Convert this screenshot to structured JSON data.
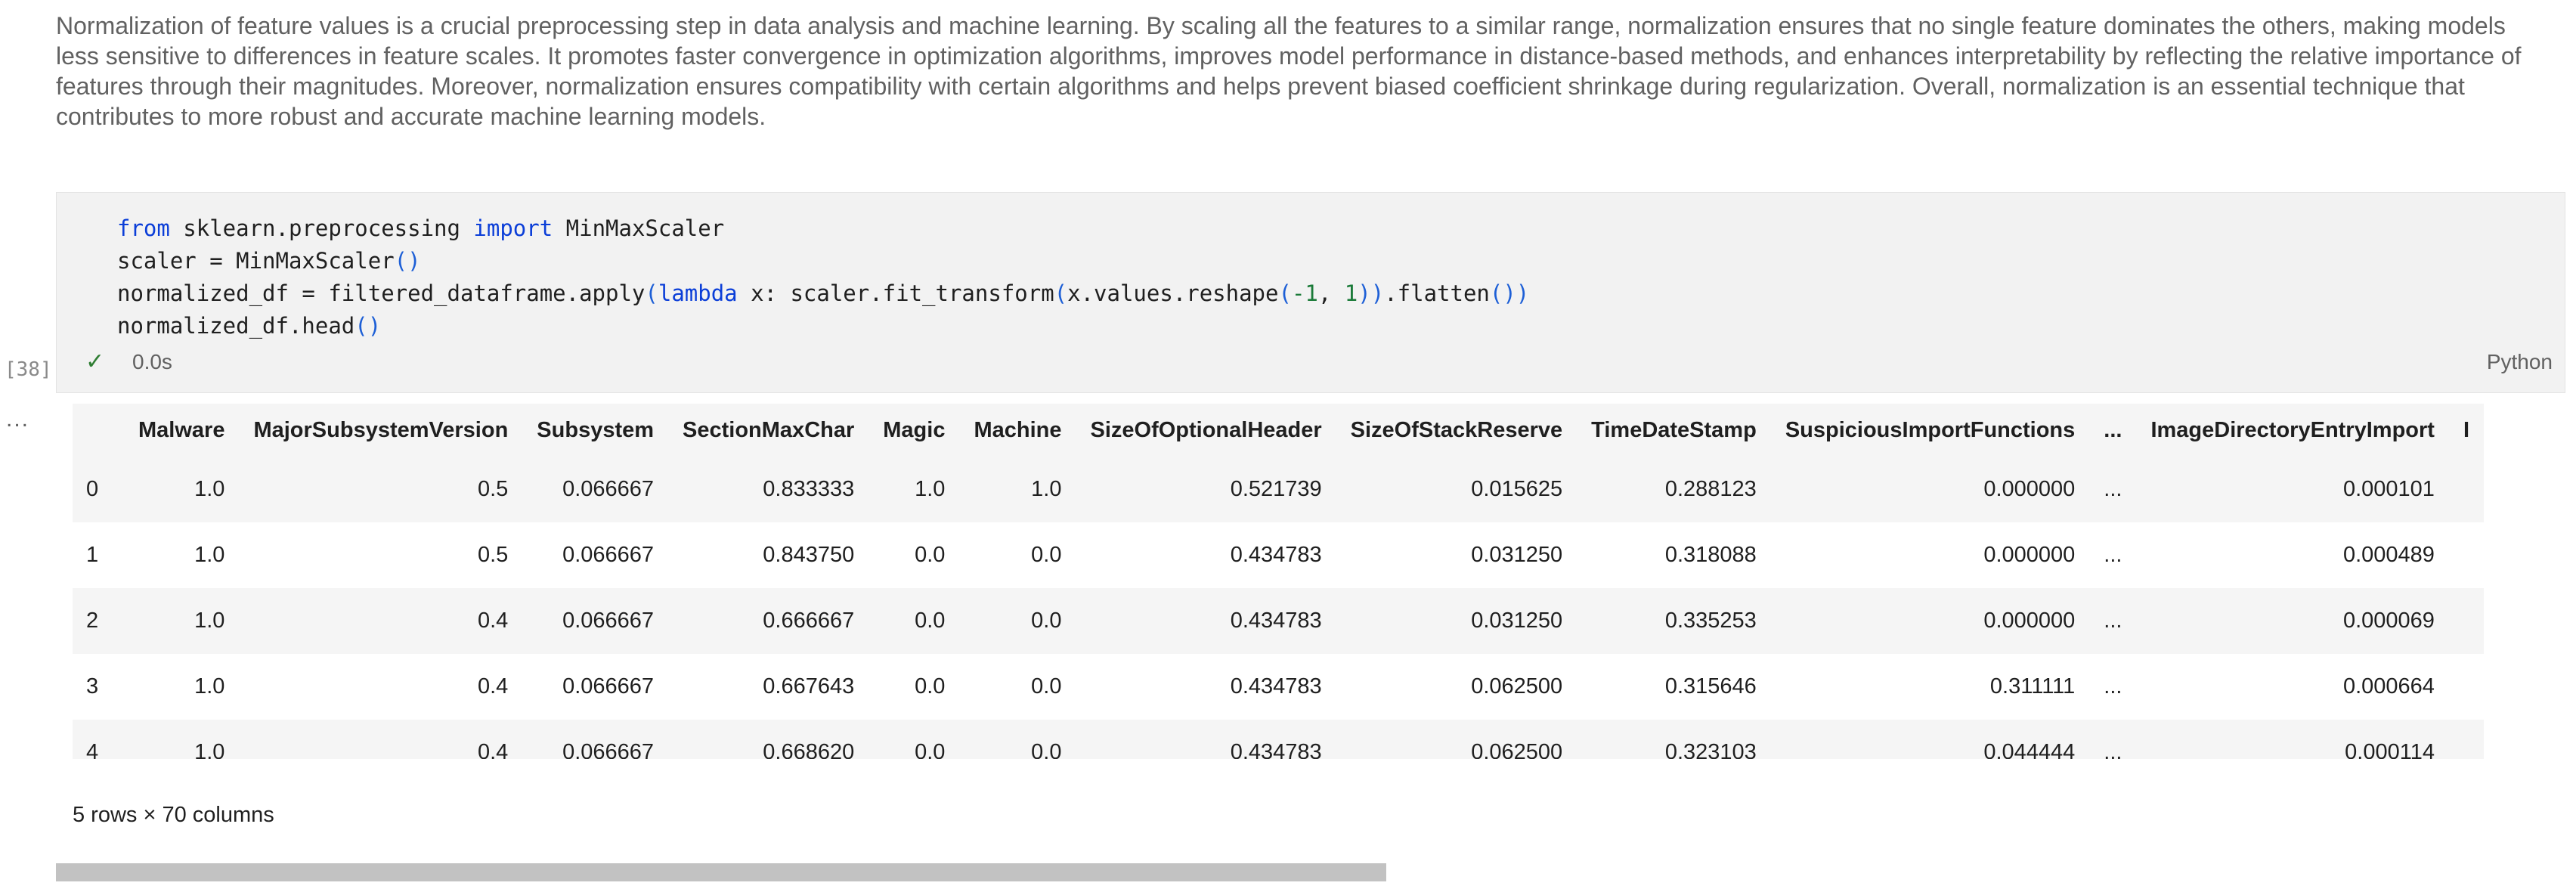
{
  "markdown": {
    "text": "Normalization of feature values is a crucial preprocessing step in data analysis and machine learning. By scaling all the features to a similar range, normalization ensures that no single feature dominates the others, making models less sensitive to differences in feature scales. It promotes faster convergence in optimization algorithms, improves model performance in distance-based methods, and enhances interpretability by reflecting the relative importance of features through their magnitudes. Moreover, normalization ensures compatibility with certain algorithms and helps prevent biased coefficient shrinkage during regularization. Overall, normalization is an essential technique that contributes to more robust and accurate machine learning models."
  },
  "code_cell": {
    "execution_count": "[38]",
    "status_icon": "check-icon",
    "duration": "0.0s",
    "language": "Python",
    "lines": {
      "l1": {
        "kw_from": "from",
        "mod": " sklearn.preprocessing ",
        "kw_import": "import",
        "name": " MinMaxScaler"
      },
      "l2": {
        "a": "scaler = MinMaxScaler",
        "b": "()"
      },
      "l3": {
        "a": "normalized_df = filtered_dataframe.apply",
        "b1": "(",
        "kw": "lambda",
        "c": " x: scaler.fit_transform",
        "b2": "(",
        "d": "x.values.reshape",
        "b3": "(",
        "n1": "-1",
        "e": ", ",
        "n2": "1",
        "b4": "))",
        "f": ".flatten",
        "b5": "())"
      },
      "l4": {
        "a": "normalized_df.head",
        "b": "()"
      }
    }
  },
  "output": {
    "menu_icon": "ellipsis-icon",
    "menu_glyph": "...",
    "columns": [
      "",
      "Malware",
      "MajorSubsystemVersion",
      "Subsystem",
      "SectionMaxChar",
      "Magic",
      "Machine",
      "SizeOfOptionalHeader",
      "SizeOfStackReserve",
      "TimeDateStamp",
      "SuspiciousImportFunctions",
      "...",
      "ImageDirectoryEntryImport",
      "I"
    ],
    "rows": [
      [
        "0",
        "1.0",
        "0.5",
        "0.066667",
        "0.833333",
        "1.0",
        "1.0",
        "0.521739",
        "0.015625",
        "0.288123",
        "0.000000",
        "...",
        "0.000101",
        ""
      ],
      [
        "1",
        "1.0",
        "0.5",
        "0.066667",
        "0.843750",
        "0.0",
        "0.0",
        "0.434783",
        "0.031250",
        "0.318088",
        "0.000000",
        "...",
        "0.000489",
        ""
      ],
      [
        "2",
        "1.0",
        "0.4",
        "0.066667",
        "0.666667",
        "0.0",
        "0.0",
        "0.434783",
        "0.031250",
        "0.335253",
        "0.000000",
        "...",
        "0.000069",
        ""
      ],
      [
        "3",
        "1.0",
        "0.4",
        "0.066667",
        "0.667643",
        "0.0",
        "0.0",
        "0.434783",
        "0.062500",
        "0.315646",
        "0.311111",
        "...",
        "0.000664",
        ""
      ],
      [
        "4",
        "1.0",
        "0.4",
        "0.066667",
        "0.668620",
        "0.0",
        "0.0",
        "0.434783",
        "0.062500",
        "0.323103",
        "0.044444",
        "...",
        "0.000114",
        ""
      ]
    ],
    "shape": "5 rows × 70 columns",
    "horizontal_scroll_fraction": 0.53
  }
}
